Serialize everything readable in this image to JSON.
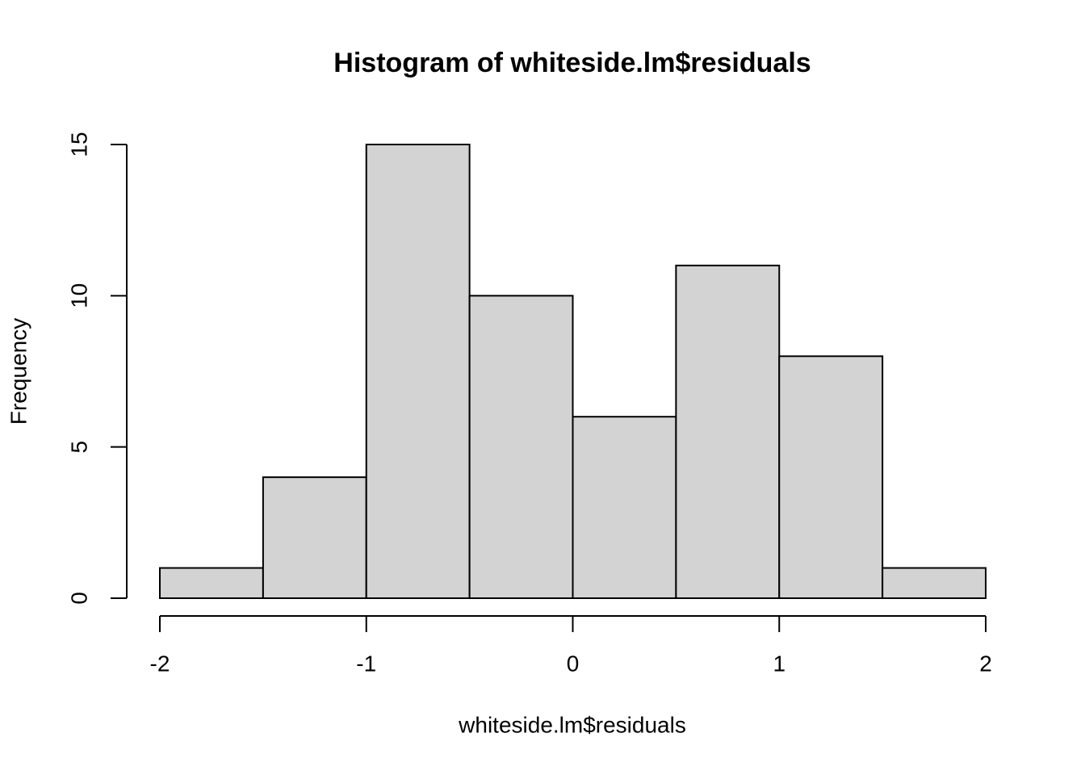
{
  "chart_data": {
    "type": "histogram",
    "title": "Histogram of whiteside.lm$residuals",
    "x_label": "whiteside.lm$residuals",
    "y_label": "Frequency",
    "bins": [
      -2,
      -1.5,
      -1,
      -0.5,
      0,
      0.5,
      1,
      1.5,
      2
    ],
    "values": [
      1,
      4,
      15,
      10,
      6,
      11,
      8,
      1
    ],
    "color": "#d3d3d3",
    "xlim": [
      -2,
      2
    ],
    "xticks": [
      -2,
      -1,
      0,
      1,
      2
    ],
    "ylim": [
      0,
      15
    ],
    "yticks": [
      0,
      5,
      10,
      15
    ]
  }
}
